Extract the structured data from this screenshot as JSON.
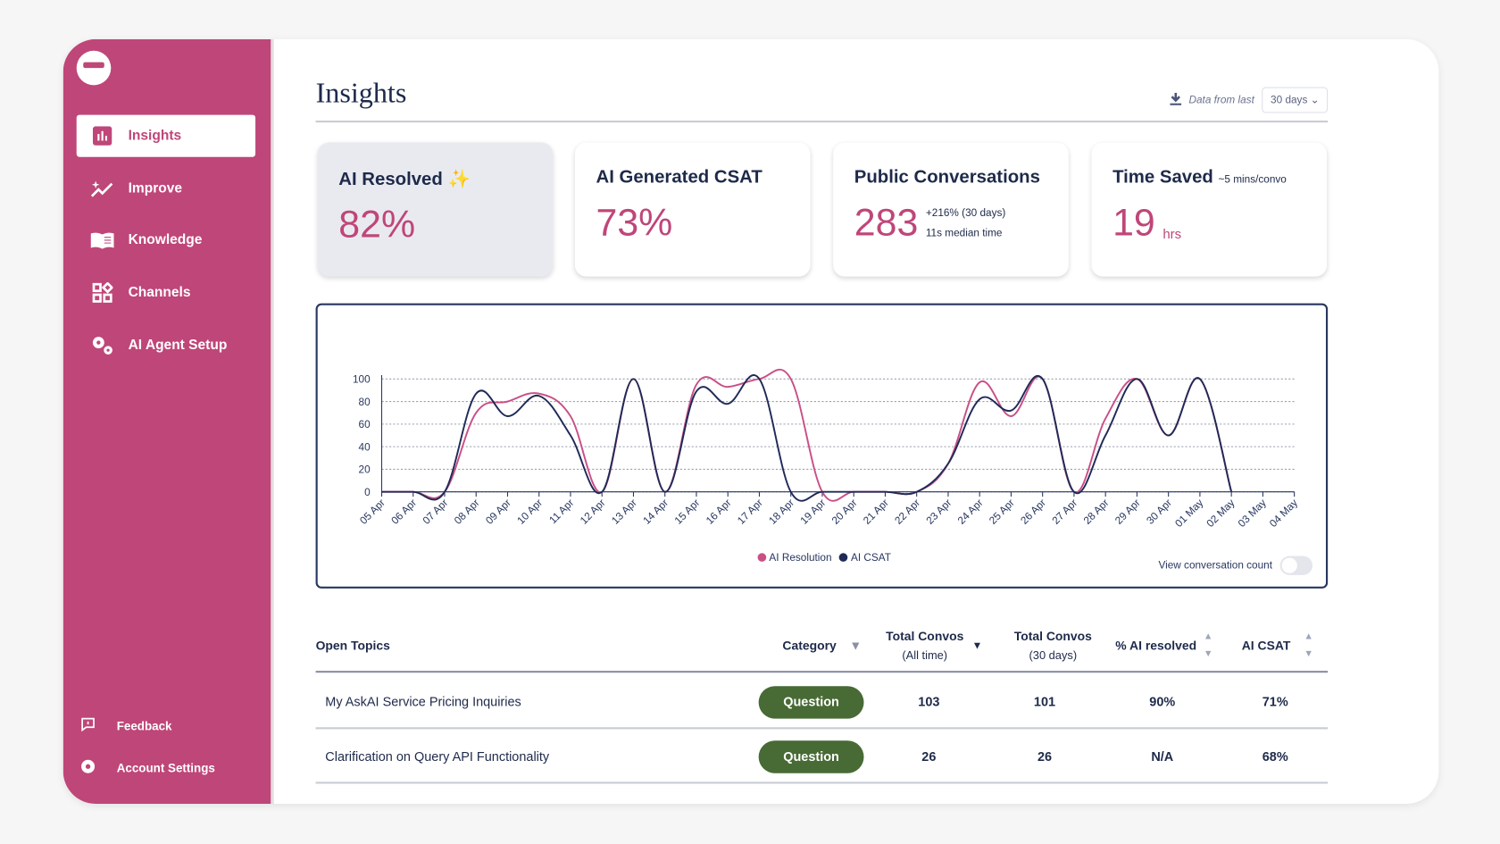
{
  "sidebar": {
    "items": [
      {
        "label": "Insights",
        "icon": "bar-chart-icon",
        "active": true
      },
      {
        "label": "Improve",
        "icon": "sparkle-trend-icon"
      },
      {
        "label": "Knowledge",
        "icon": "book-icon"
      },
      {
        "label": "Channels",
        "icon": "grid-icon"
      },
      {
        "label": "AI Agent Setup",
        "icon": "gears-icon"
      }
    ],
    "bottom": [
      {
        "label": "Feedback",
        "icon": "feedback-icon"
      },
      {
        "label": "Account Settings",
        "icon": "gear-icon"
      }
    ]
  },
  "header": {
    "title": "Insights",
    "data_from_label": "Data from last",
    "range": "30 days"
  },
  "cards": [
    {
      "title": "AI Resolved",
      "emoji": "✨",
      "value": "82%"
    },
    {
      "title": "AI Generated CSAT",
      "value": "73%"
    },
    {
      "title": "Public Conversations",
      "value": "283",
      "sub1": "+216% (30 days)",
      "sub2": "11s median time"
    },
    {
      "title": "Time Saved",
      "title_note": "~5 mins/convo",
      "value": "19",
      "unit": "hrs"
    }
  ],
  "chart_data": {
    "type": "line",
    "x": [
      "05 Apr",
      "06 Apr",
      "07 Apr",
      "08 Apr",
      "09 Apr",
      "10 Apr",
      "11 Apr",
      "12 Apr",
      "13 Apr",
      "14 Apr",
      "15 Apr",
      "16 Apr",
      "17 Apr",
      "18 Apr",
      "19 Apr",
      "20 Apr",
      "21 Apr",
      "22 Apr",
      "23 Apr",
      "24 Apr",
      "25 Apr",
      "26 Apr",
      "27 Apr",
      "28 Apr",
      "29 Apr",
      "30 Apr",
      "01 May",
      "02 May",
      "03 May",
      "04 May"
    ],
    "yticks": [
      "0",
      "20",
      "40",
      "60",
      "80",
      "100"
    ],
    "ylim": [
      0,
      100
    ],
    "grid": true,
    "legend": "bottom",
    "series": [
      {
        "name": "AI Resolution",
        "color": "#c94f86",
        "values": [
          0,
          0,
          0,
          70,
          80,
          87,
          67,
          0,
          100,
          0,
          95,
          93,
          100,
          100,
          0,
          0,
          0,
          0,
          25,
          97,
          67,
          100,
          0,
          65,
          100,
          50,
          100,
          0,
          null,
          null
        ]
      },
      {
        "name": "AI CSAT",
        "color": "#1f2a57",
        "values": [
          0,
          0,
          0,
          87,
          67,
          85,
          50,
          0,
          100,
          0,
          89,
          78,
          100,
          0,
          0,
          0,
          0,
          0,
          25,
          82,
          72,
          100,
          0,
          50,
          100,
          50,
          100,
          0,
          null,
          null
        ]
      }
    ]
  },
  "chart_toggle": {
    "label": "View conversation count",
    "on": false
  },
  "table": {
    "headers": {
      "topic": "Open Topics",
      "category": "Category",
      "all_time": "Total Convos",
      "all_time_sub": "(All time)",
      "days30": "Total Convos",
      "days30_sub": "(30 days)",
      "resolved": "% AI resolved",
      "csat": "AI CSAT"
    },
    "rows": [
      {
        "topic": "My AskAI Service Pricing Inquiries",
        "category": "Question",
        "all_time": "103",
        "days30": "101",
        "resolved": "90%",
        "csat": "71%"
      },
      {
        "topic": "Clarification on Query API Functionality",
        "category": "Question",
        "all_time": "26",
        "days30": "26",
        "resolved": "N/A",
        "csat": "68%"
      }
    ]
  },
  "colors": {
    "brand": "#bf4679",
    "navy": "#1e2a4a",
    "badge": "#486a35"
  }
}
